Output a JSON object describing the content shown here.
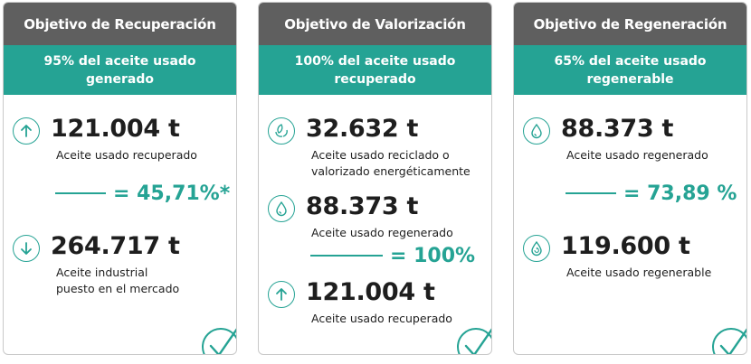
{
  "colors": {
    "header_bg": "#5f5f5f",
    "accent": "#25a394",
    "text": "#1e1e1e"
  },
  "cards": [
    {
      "title": "Objetivo de Recuperación",
      "subtitle": "95% del aceite usado generado",
      "stats": [
        {
          "icon": "arrow-up-icon",
          "value": "121.004 t",
          "label": "Aceite usado recuperado"
        },
        {
          "icon": "arrow-down-icon",
          "value": "264.717 t",
          "label_lines": [
            "Aceite industrial",
            "puesto en el mercado"
          ]
        }
      ],
      "result": "= 45,71%*"
    },
    {
      "title": "Objetivo de Valorización",
      "subtitle": "100% del aceite usado recuperado",
      "stats": [
        {
          "icon": "recycle-leaf-icon",
          "value": "32.632 t",
          "label_lines": [
            "Aceite usado reciclado o",
            "valorizado energéticamente"
          ]
        },
        {
          "icon": "oil-drop-icon",
          "value": "88.373 t",
          "label": "Aceite usado regenerado"
        },
        {
          "icon": "arrow-up-icon",
          "value": "121.004 t",
          "label": "Aceite usado recuperado"
        }
      ],
      "result": "= 100%"
    },
    {
      "title": "Objetivo de Regeneración",
      "subtitle": "65% del aceite usado regenerable",
      "stats": [
        {
          "icon": "oil-drop-icon",
          "value": "88.373 t",
          "label": "Aceite usado regenerado"
        },
        {
          "icon": "oil-drop-recycle-icon",
          "value": "119.600 t",
          "label": "Aceite usado regenerable"
        }
      ],
      "result": "= 73,89 %"
    }
  ]
}
